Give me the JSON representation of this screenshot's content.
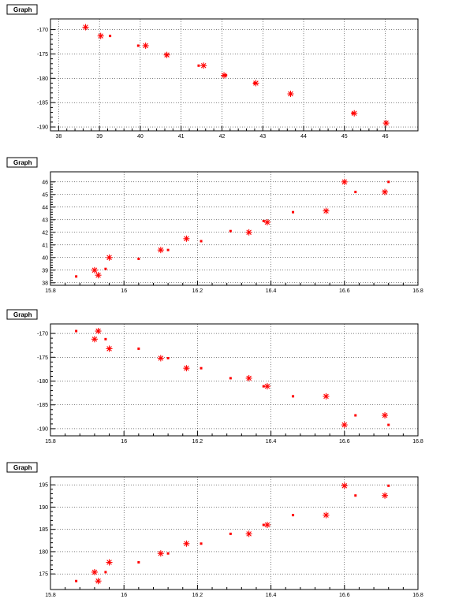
{
  "chart_data": [
    {
      "type": "scatter",
      "title": "Graph",
      "xlabel": "",
      "ylabel": "",
      "xlim": [
        37.8,
        46.8
      ],
      "ylim": [
        -190.8,
        -167.8
      ],
      "x_ticks": [
        38,
        39,
        40,
        41,
        42,
        43,
        44,
        45,
        46
      ],
      "y_ticks": [
        -170,
        -175,
        -180,
        -185,
        -190
      ],
      "grid": true,
      "marker_color": "#ff0000",
      "series": [
        {
          "marker": "star",
          "points": [
            [
              38.66,
              -169.5
            ],
            [
              39.03,
              -171.3
            ],
            [
              40.13,
              -173.3
            ],
            [
              40.65,
              -175.2
            ],
            [
              41.55,
              -177.4
            ],
            [
              42.05,
              -179.4
            ],
            [
              42.83,
              -181.0
            ],
            [
              43.68,
              -183.2
            ],
            [
              45.24,
              -187.2
            ],
            [
              46.02,
              -189.2
            ]
          ]
        },
        {
          "marker": "square",
          "points": [
            [
              39.26,
              -171.3
            ],
            [
              39.95,
              -173.3
            ],
            [
              40.64,
              -175.2
            ],
            [
              41.43,
              -177.4
            ],
            [
              42.1,
              -179.4
            ],
            [
              42.8,
              -181.0
            ],
            [
              43.68,
              -183.2
            ],
            [
              45.2,
              -187.2
            ],
            [
              46.02,
              -189.2
            ]
          ]
        }
      ]
    },
    {
      "type": "scatter",
      "title": "Graph",
      "xlabel": "",
      "ylabel": "",
      "xlim": [
        15.8,
        16.8
      ],
      "ylim": [
        37.8,
        46.8
      ],
      "x_ticks": [
        15.8,
        16,
        16.2,
        16.4,
        16.6,
        16.8
      ],
      "y_ticks": [
        38,
        39,
        40,
        41,
        42,
        43,
        44,
        45,
        46
      ],
      "grid": true,
      "marker_color": "#ff0000",
      "series": [
        {
          "marker": "star",
          "points": [
            [
              15.92,
              39.0
            ],
            [
              15.93,
              38.6
            ],
            [
              15.96,
              40.0
            ],
            [
              16.1,
              40.6
            ],
            [
              16.17,
              41.5
            ],
            [
              16.34,
              42.0
            ],
            [
              16.39,
              42.8
            ],
            [
              16.55,
              43.7
            ],
            [
              16.6,
              46.0
            ],
            [
              16.71,
              45.2
            ]
          ]
        },
        {
          "marker": "square",
          "points": [
            [
              15.87,
              38.5
            ],
            [
              15.95,
              39.1
            ],
            [
              16.04,
              39.9
            ],
            [
              16.12,
              40.6
            ],
            [
              16.21,
              41.3
            ],
            [
              16.29,
              42.1
            ],
            [
              16.38,
              42.9
            ],
            [
              16.46,
              43.6
            ],
            [
              16.63,
              45.2
            ],
            [
              16.72,
              46.0
            ]
          ]
        }
      ]
    },
    {
      "type": "scatter",
      "title": "Graph",
      "xlabel": "",
      "ylabel": "",
      "xlim": [
        15.8,
        16.8
      ],
      "ylim": [
        -191.5,
        -168.0
      ],
      "x_ticks": [
        15.8,
        16,
        16.2,
        16.4,
        16.6,
        16.8
      ],
      "y_ticks": [
        -170,
        -175,
        -180,
        -185,
        -190
      ],
      "grid": true,
      "marker_color": "#ff0000",
      "series": [
        {
          "marker": "star",
          "points": [
            [
              15.92,
              -171.2
            ],
            [
              15.93,
              -169.5
            ],
            [
              15.96,
              -173.2
            ],
            [
              16.1,
              -175.2
            ],
            [
              16.17,
              -177.3
            ],
            [
              16.34,
              -179.4
            ],
            [
              16.39,
              -181.1
            ],
            [
              16.55,
              -183.2
            ],
            [
              16.6,
              -189.2
            ],
            [
              16.71,
              -187.2
            ]
          ]
        },
        {
          "marker": "square",
          "points": [
            [
              15.87,
              -169.5
            ],
            [
              15.95,
              -171.2
            ],
            [
              16.04,
              -173.2
            ],
            [
              16.12,
              -175.2
            ],
            [
              16.21,
              -177.3
            ],
            [
              16.29,
              -179.4
            ],
            [
              16.38,
              -181.1
            ],
            [
              16.46,
              -183.2
            ],
            [
              16.63,
              -187.2
            ],
            [
              16.72,
              -189.2
            ]
          ]
        }
      ]
    },
    {
      "type": "scatter",
      "title": "Graph",
      "xlabel": "",
      "ylabel": "",
      "xlim": [
        15.8,
        16.8
      ],
      "ylim": [
        171.5,
        196.8
      ],
      "x_ticks": [
        15.8,
        16,
        16.2,
        16.4,
        16.6,
        16.8
      ],
      "y_ticks": [
        175,
        180,
        185,
        190,
        195
      ],
      "grid": true,
      "marker_color": "#ff0000",
      "series": [
        {
          "marker": "star",
          "points": [
            [
              15.92,
              175.4
            ],
            [
              15.93,
              173.4
            ],
            [
              15.96,
              177.6
            ],
            [
              16.1,
              179.6
            ],
            [
              16.17,
              181.8
            ],
            [
              16.34,
              184.0
            ],
            [
              16.39,
              186.0
            ],
            [
              16.55,
              188.2
            ],
            [
              16.6,
              194.8
            ],
            [
              16.71,
              192.6
            ]
          ]
        },
        {
          "marker": "square",
          "points": [
            [
              15.87,
              173.4
            ],
            [
              15.95,
              175.4
            ],
            [
              16.04,
              177.6
            ],
            [
              16.12,
              179.6
            ],
            [
              16.21,
              181.8
            ],
            [
              16.29,
              184.0
            ],
            [
              16.38,
              186.0
            ],
            [
              16.46,
              188.2
            ],
            [
              16.63,
              192.6
            ],
            [
              16.72,
              194.8
            ]
          ]
        }
      ]
    }
  ]
}
